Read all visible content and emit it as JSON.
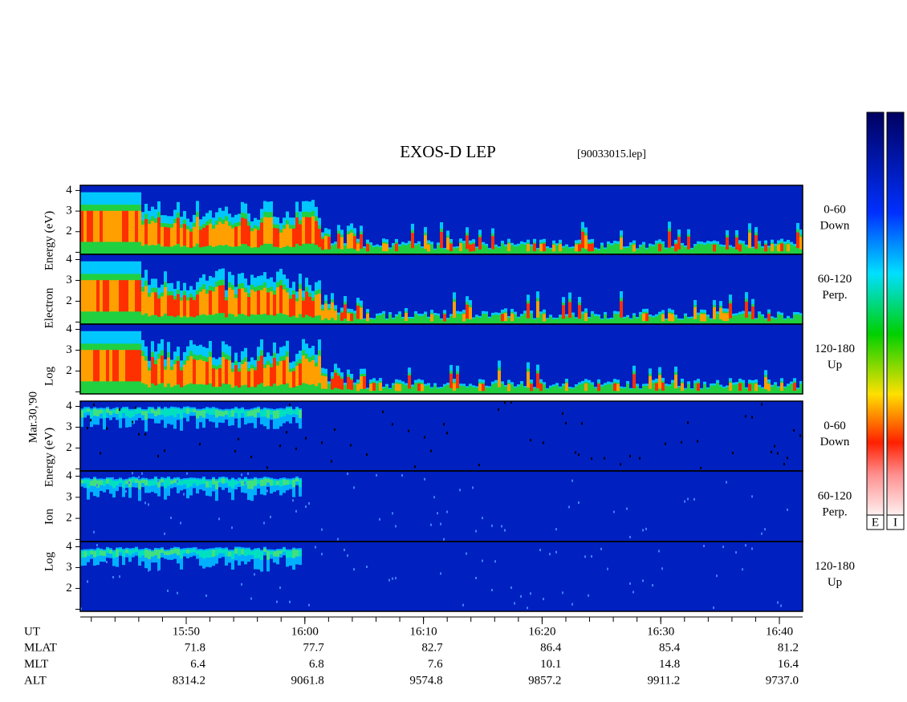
{
  "title": "EXOS-D LEP",
  "file": "[90033015.lep]",
  "date": "Mar.30,'90",
  "electron_axis": {
    "words": [
      "Log",
      "Electron",
      "Energy (eV)"
    ]
  },
  "ion_axis": {
    "words": [
      "Log",
      "Ion",
      "Energy (eV)"
    ]
  },
  "ylim": [
    0.9,
    4.25
  ],
  "yticks": [
    2,
    3,
    4
  ],
  "minor_yticks": [
    1
  ],
  "panels": [
    {
      "species": "electron",
      "label": [
        "0-60",
        "Down"
      ]
    },
    {
      "species": "electron",
      "label": [
        "60-120",
        "Perp."
      ]
    },
    {
      "species": "electron",
      "label": [
        "120-180",
        "Up"
      ]
    },
    {
      "species": "ion",
      "label": [
        "0-60",
        "Down"
      ]
    },
    {
      "species": "ion",
      "label": [
        "60-120",
        "Perp."
      ]
    },
    {
      "species": "ion",
      "label": [
        "120-180",
        "Up"
      ]
    }
  ],
  "time": {
    "xlim": [
      941.07,
      1001.96
    ],
    "xticks": [
      {
        "value": 950,
        "label": "15:50"
      },
      {
        "value": 960,
        "label": "16:00"
      },
      {
        "value": 970,
        "label": "16:10"
      },
      {
        "value": 980,
        "label": "16:20"
      },
      {
        "value": 990,
        "label": "16:30"
      },
      {
        "value": 1000,
        "label": "16:40"
      }
    ],
    "minor_xticks": [
      942,
      944,
      946,
      948,
      950,
      952,
      954,
      956,
      958,
      960,
      962,
      964,
      966,
      968,
      970,
      972,
      974,
      976,
      978,
      980,
      982,
      984,
      986,
      988,
      990,
      992,
      994,
      996,
      998,
      1000
    ]
  },
  "table": {
    "ut_label": "UT",
    "rows": [
      {
        "label": "MLAT",
        "values": [
          "71.8",
          "77.7",
          "82.7",
          "86.4",
          "85.4",
          "81.2"
        ]
      },
      {
        "label": "MLT",
        "values": [
          "6.4",
          "6.8",
          "7.6",
          "10.1",
          "14.8",
          "16.4"
        ]
      },
      {
        "label": "ALT",
        "values": [
          "8314.2",
          "9061.8",
          "9574.8",
          "9857.2",
          "9911.2",
          "9737.0"
        ]
      }
    ]
  },
  "colorbars": [
    {
      "label": "E"
    },
    {
      "label": "I"
    }
  ]
}
